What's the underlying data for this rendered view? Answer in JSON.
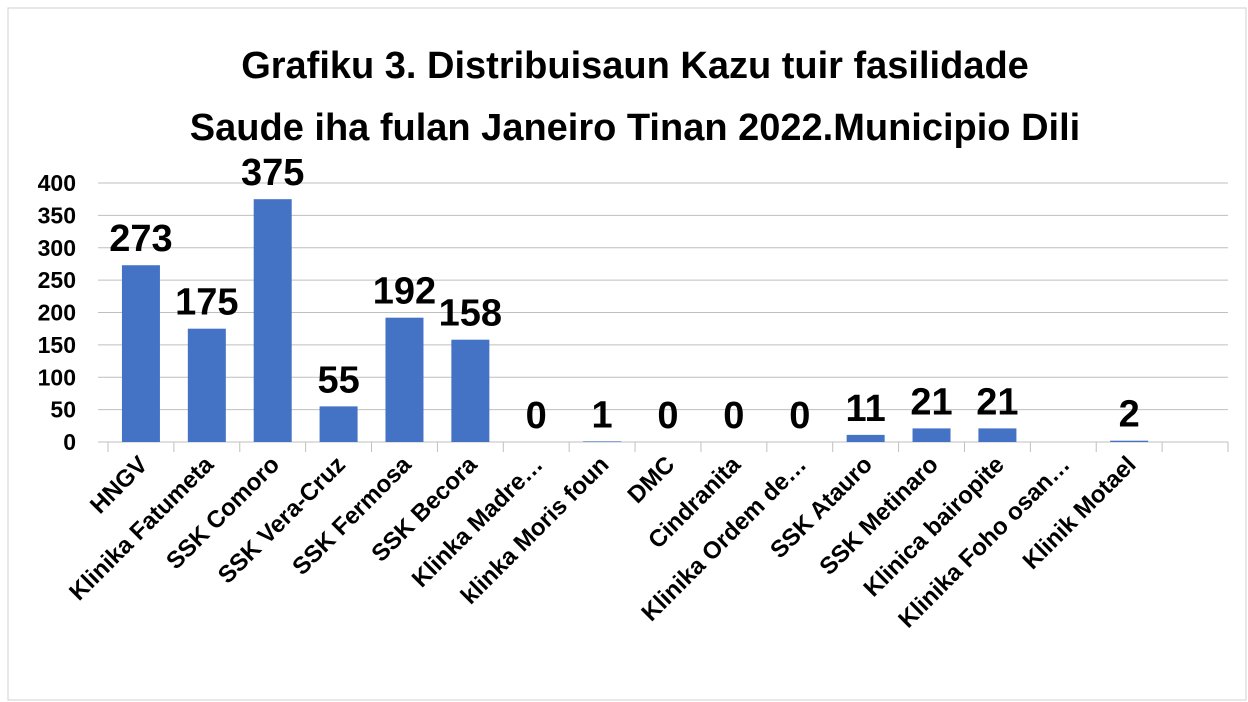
{
  "chart_data": {
    "type": "bar",
    "title": [
      "Grafiku 3. Distribuisaun Kazu tuir fasilidade",
      "Saude iha fulan Janeiro Tinan 2022.Municipio Dili"
    ],
    "categories": [
      "HNGV",
      "Klinika Fatumeta",
      "SSK Comoro",
      "SSK Vera-Cruz",
      "SSK Fermosa",
      "SSK Becora",
      "Klinka Madre…",
      "klinka Moris foun",
      "DMC",
      "Cindranita",
      "Klinika Ordem de…",
      "SSK Atauro",
      "SSK Metinaro",
      "Klinica bairopite",
      "Klinika Foho osan…",
      "Klinik Motael",
      null
    ],
    "values": [
      273,
      175,
      375,
      55,
      192,
      158,
      0,
      1,
      0,
      0,
      0,
      11,
      21,
      21,
      null,
      2,
      null
    ],
    "color": "#4472c4",
    "ylim": [
      0,
      400
    ],
    "yticks": [
      0,
      50,
      100,
      150,
      200,
      250,
      300,
      350,
      400
    ],
    "grid": true
  }
}
